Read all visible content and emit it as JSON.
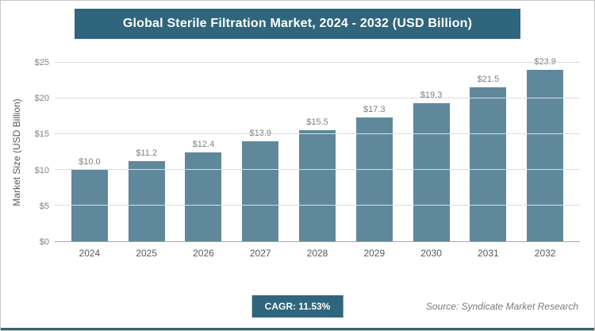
{
  "header": {
    "title": "Global Sterile Filtration Market, 2024 - 2032 (USD Billion)"
  },
  "footer": {
    "cagr_label": "CAGR: 11.53%",
    "source": "Source: Syndicate Market Research"
  },
  "colors": {
    "accent": "#2f657d",
    "bar": "#60889b",
    "gridline": "#dcdcdc"
  },
  "chart_data": {
    "type": "bar",
    "title": "Global Sterile Filtration Market, 2024 - 2032 (USD Billion)",
    "categories": [
      "2024",
      "2025",
      "2026",
      "2027",
      "2028",
      "2029",
      "2030",
      "2031",
      "2032"
    ],
    "values": [
      10.0,
      11.2,
      12.4,
      13.9,
      15.5,
      17.3,
      19.3,
      21.5,
      23.9
    ],
    "value_labels": [
      "$10.0",
      "$11.2",
      "$12.4",
      "$13.9",
      "$15.5",
      "$17.3",
      "$19.3",
      "$21.5",
      "$23.9"
    ],
    "xlabel": "",
    "ylabel": "Market Size (USD Billion)",
    "ylim": [
      0,
      25
    ],
    "yticks": [
      0,
      5,
      10,
      15,
      20,
      25
    ],
    "ytick_labels": [
      "$0",
      "$5",
      "$10",
      "$15",
      "$20",
      "$25"
    ],
    "grid": true,
    "legend": "none",
    "annotations": [
      "CAGR: 11.53%",
      "Source: Syndicate Market Research"
    ]
  }
}
